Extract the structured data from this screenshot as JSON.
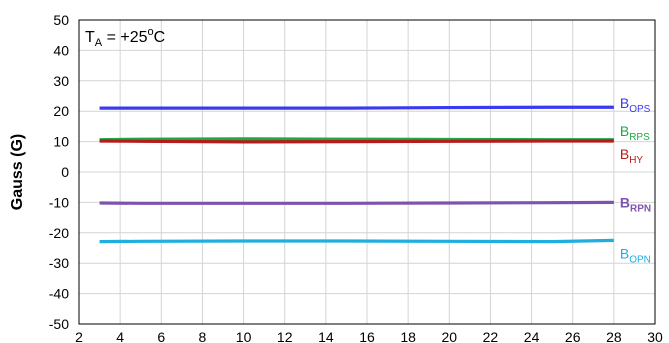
{
  "chart_data": {
    "type": "line",
    "title": "",
    "xlabel": "",
    "ylabel": "Gauss (G)",
    "xlim": [
      2,
      30
    ],
    "ylim": [
      -50,
      50
    ],
    "xticks": [
      2,
      4,
      6,
      8,
      10,
      12,
      14,
      16,
      18,
      20,
      22,
      24,
      26,
      28,
      30
    ],
    "yticks": [
      -50,
      -40,
      -30,
      -20,
      -10,
      0,
      10,
      20,
      30,
      40,
      50
    ],
    "grid": true,
    "annotation": {
      "main": "T",
      "sub": "A",
      "rest": " = +25",
      "sup": "o",
      "unit": "C"
    },
    "series": [
      {
        "name": "B",
        "sub": "OPS",
        "color": "#3a3af0",
        "x": [
          3,
          5,
          10,
          15,
          20,
          25,
          28
        ],
        "y": [
          21,
          21,
          21,
          21,
          21.2,
          21.3,
          21.3
        ]
      },
      {
        "name": "B",
        "sub": "RPS",
        "color": "#1fa844",
        "x": [
          3,
          5,
          10,
          15,
          20,
          25,
          28
        ],
        "y": [
          10.6,
          10.8,
          10.9,
          10.8,
          10.7,
          10.6,
          10.6
        ]
      },
      {
        "name": "B",
        "sub": "HY",
        "color": "#b51c1c",
        "x": [
          3,
          5,
          10,
          15,
          20,
          25,
          28
        ],
        "y": [
          10.2,
          10.1,
          9.9,
          10,
          10.1,
          10.2,
          10.2
        ]
      },
      {
        "name": "B",
        "sub": "RPN",
        "color": "#7e53b0",
        "x": [
          3,
          5,
          10,
          15,
          20,
          25,
          28
        ],
        "y": [
          -10.2,
          -10.3,
          -10.3,
          -10.3,
          -10.2,
          -10.1,
          -10
        ]
      },
      {
        "name": "B",
        "sub": "OPN",
        "color": "#1eaee0",
        "x": [
          3,
          5,
          10,
          15,
          20,
          25,
          28
        ],
        "y": [
          -22.9,
          -22.8,
          -22.7,
          -22.7,
          -22.8,
          -22.9,
          -22.5
        ]
      }
    ]
  }
}
